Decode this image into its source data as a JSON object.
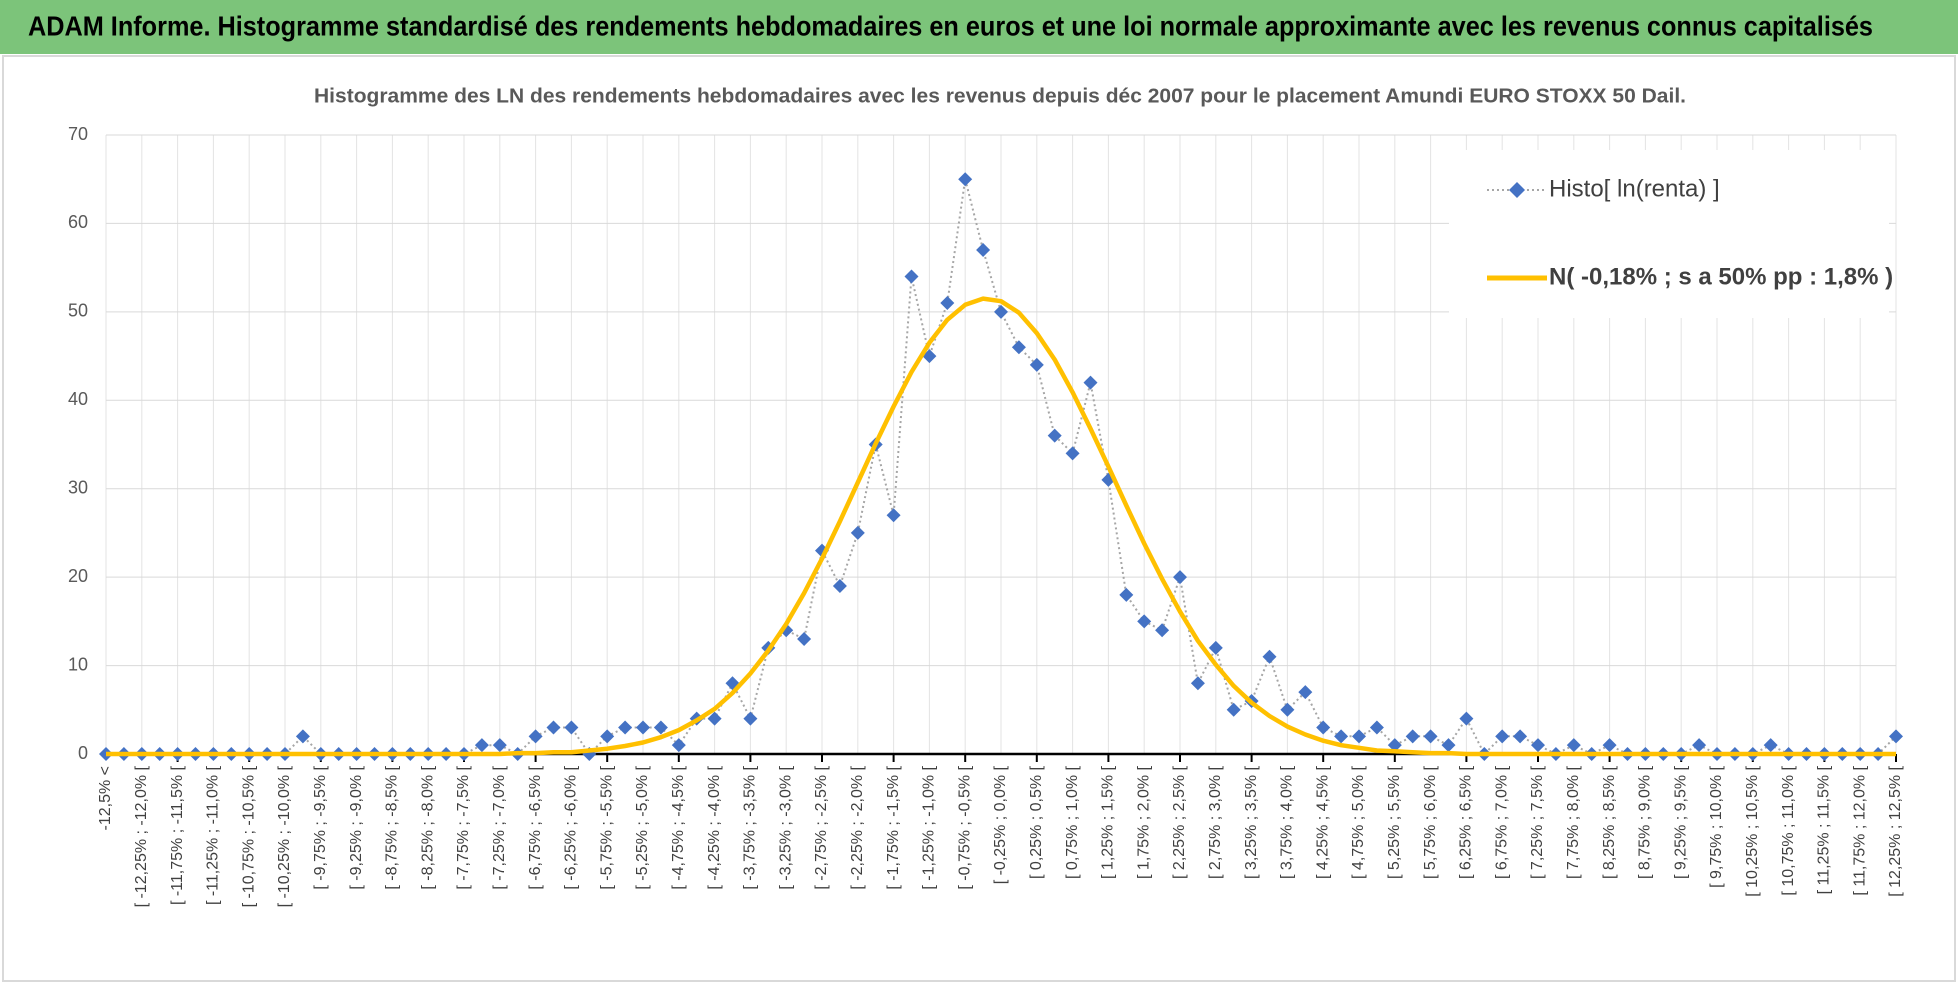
{
  "header": {
    "title": "ADAM Informe. Histogramme standardisé des rendements hebdomadaires en euros et une loi normale approximante avec les revenus connus capitalisés"
  },
  "chart_data": {
    "type": "line",
    "title": "Histogramme des LN des rendements hebdomadaires avec les revenus depuis déc 2007 pour le placement Amundi EURO STOXX 50 Dail.",
    "categories": [
      "-12,5% <",
      null,
      "[ -12,25% ; -12,0% [",
      null,
      "[ -11,75% ; -11,5% [",
      null,
      "[ -11,25% ; -11,0% [",
      null,
      "[ -10,75% ; -10,5% [",
      null,
      "[ -10,25% ; -10,0% [",
      null,
      "[ -9,75% ; -9,5% [",
      null,
      "[ -9,25% ; -9,0% [",
      null,
      "[ -8,75% ; -8,5% [",
      null,
      "[ -8,25% ; -8,0% [",
      null,
      "[ -7,75% ; -7,5% [",
      null,
      "[ -7,25% ; -7,0% [",
      null,
      "[ -6,75% ; -6,5% [",
      null,
      "[ -6,25% ; -6,0% [",
      null,
      "[ -5,75% ; -5,5% [",
      null,
      "[ -5,25% ; -5,0% [",
      null,
      "[ -4,75% ; -4,5% [",
      null,
      "[ -4,25% ; -4,0% [",
      null,
      "[ -3,75% ; -3,5% [",
      null,
      "[ -3,25% ; -3,0% [",
      null,
      "[ -2,75% ; -2,5% [",
      null,
      "[ -2,25% ; -2,0% [",
      null,
      "[ -1,75% ; -1,5% [",
      null,
      "[ -1,25% ; -1,0% [",
      null,
      "[ -0,75% ; -0,5% [",
      null,
      "[ -0,25% ; 0,0% [",
      null,
      "[ 0,25% ; 0,5% [",
      null,
      "[ 0,75% ; 1,0% [",
      null,
      "[ 1,25% ; 1,5% [",
      null,
      "[ 1,75% ; 2,0% [",
      null,
      "[ 2,25% ; 2,5% [",
      null,
      "[ 2,75% ; 3,0% [",
      null,
      "[ 3,25% ; 3,5% [",
      null,
      "[ 3,75% ; 4,0% [",
      null,
      "[ 4,25% ; 4,5% [",
      null,
      "[ 4,75% ; 5,0% [",
      null,
      "[ 5,25% ; 5,5% [",
      null,
      "[ 5,75% ; 6,0% [",
      null,
      "[ 6,25% ; 6,5% [",
      null,
      "[ 6,75% ; 7,0% [",
      null,
      "[ 7,25% ; 7,5% [",
      null,
      "[ 7,75% ; 8,0% [",
      null,
      "[ 8,25% ; 8,5% [",
      null,
      "[ 8,75% ; 9,0% [",
      null,
      "[ 9,25% ; 9,5% [",
      null,
      "[ 9,75% ; 10,0% [",
      null,
      "[ 10,25% ; 10,5% [",
      null,
      "[ 10,75% ; 11,0% [",
      null,
      "[ 11,25% ; 11,5% [",
      null,
      "[ 11,75% ; 12,0% [",
      null,
      "[ 12,25% ; 12,5% ["
    ],
    "series": [
      {
        "name": "Histo[ ln(renta) ]",
        "color": "#4472c4",
        "line_color": "#a6a6a6",
        "marker": "diamond",
        "values": [
          0,
          0,
          0,
          0,
          0,
          0,
          0,
          0,
          0,
          0,
          0,
          2,
          0,
          0,
          0,
          0,
          0,
          0,
          0,
          0,
          0,
          1,
          1,
          0,
          2,
          3,
          3,
          0,
          2,
          3,
          3,
          3,
          1,
          4,
          4,
          8,
          4,
          12,
          14,
          13,
          23,
          19,
          25,
          35,
          27,
          54,
          45,
          51,
          65,
          57,
          50,
          46,
          44,
          36,
          34,
          42,
          31,
          18,
          15,
          14,
          20,
          8,
          12,
          5,
          6,
          11,
          5,
          7,
          3,
          2,
          2,
          3,
          1,
          2,
          2,
          1,
          4,
          0,
          2,
          2,
          1,
          0,
          1,
          0,
          1,
          0,
          0,
          0,
          0,
          1,
          0,
          0,
          0,
          1,
          0,
          0,
          0,
          0,
          0,
          0,
          2
        ]
      },
      {
        "name": "N( -0,18% ; s a 50% pp : 1,8% )",
        "color": "#ffc000",
        "marker": "none",
        "values": [
          0,
          0,
          0,
          0,
          0,
          0,
          0,
          0,
          0,
          0,
          0,
          0,
          0,
          0,
          0,
          0,
          0,
          0,
          0,
          0,
          0,
          0,
          0,
          0.1,
          0.1,
          0.2,
          0.2,
          0.4,
          0.6,
          0.9,
          1.3,
          1.9,
          2.7,
          3.8,
          5.1,
          6.9,
          9.1,
          11.7,
          14.7,
          18.2,
          22.1,
          26.3,
          30.7,
          35.1,
          39.3,
          43.2,
          46.5,
          49.1,
          50.8,
          51.5,
          51.2,
          49.9,
          47.6,
          44.6,
          40.9,
          36.8,
          32.5,
          28.1,
          23.8,
          19.8,
          16.1,
          12.8,
          10.1,
          7.7,
          5.8,
          4.3,
          3.1,
          2.2,
          1.5,
          1.0,
          0.7,
          0.4,
          0.3,
          0.2,
          0.1,
          0.1,
          0,
          0,
          0,
          0,
          0,
          0,
          0,
          0,
          0,
          0,
          0,
          0,
          0,
          0,
          0,
          0,
          0,
          0,
          0,
          0,
          0,
          0,
          0,
          0,
          0
        ]
      }
    ],
    "ylim": [
      0,
      70
    ],
    "yticks": [
      0,
      10,
      20,
      30,
      40,
      50,
      60,
      70
    ],
    "grid": true,
    "legend": "top-right"
  }
}
